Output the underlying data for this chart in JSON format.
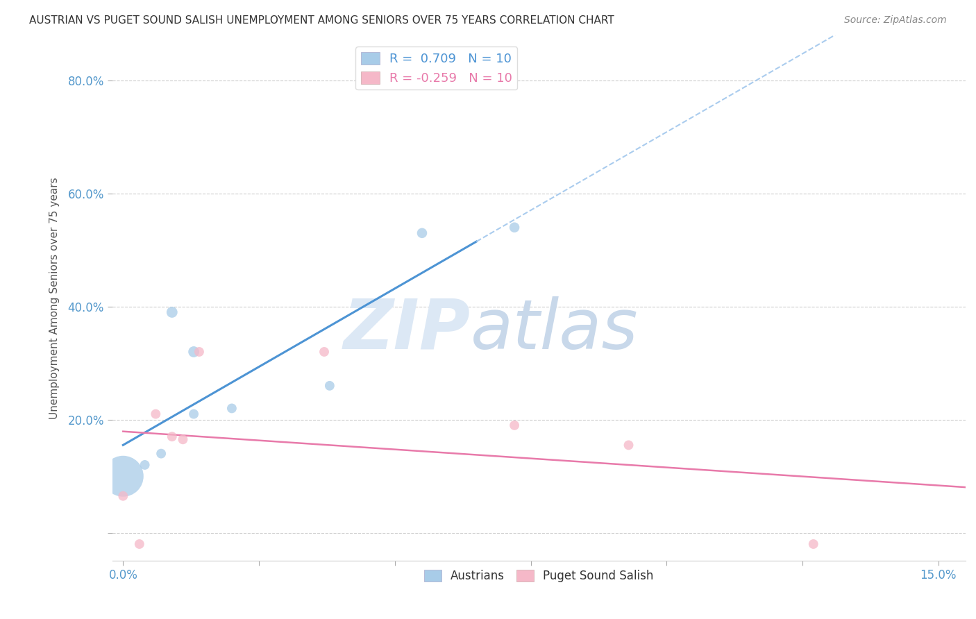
{
  "title": "AUSTRIAN VS PUGET SOUND SALISH UNEMPLOYMENT AMONG SENIORS OVER 75 YEARS CORRELATION CHART",
  "source": "Source: ZipAtlas.com",
  "ylabel": "Unemployment Among Seniors over 75 years",
  "xlabel": "",
  "xlim": [
    -0.002,
    0.155
  ],
  "ylim": [
    -0.05,
    0.88
  ],
  "x_ticks": [
    0.0,
    0.025,
    0.05,
    0.075,
    0.1,
    0.125,
    0.15
  ],
  "x_tick_labels": [
    "0.0%",
    "",
    "",
    "",
    "",
    "",
    "15.0%"
  ],
  "y_ticks": [
    0.0,
    0.2,
    0.4,
    0.6,
    0.8
  ],
  "y_tick_labels": [
    "",
    "20.0%",
    "40.0%",
    "60.0%",
    "80.0%"
  ],
  "austrians_x": [
    0.0,
    0.004,
    0.007,
    0.009,
    0.013,
    0.013,
    0.02,
    0.038,
    0.055,
    0.072
  ],
  "austrians_y": [
    0.1,
    0.12,
    0.14,
    0.39,
    0.32,
    0.21,
    0.22,
    0.26,
    0.53,
    0.54
  ],
  "austrians_size": [
    1800,
    100,
    100,
    130,
    130,
    100,
    100,
    100,
    110,
    110
  ],
  "puget_x": [
    0.0,
    0.003,
    0.006,
    0.009,
    0.011,
    0.014,
    0.037,
    0.072,
    0.093,
    0.127
  ],
  "puget_y": [
    0.065,
    -0.02,
    0.21,
    0.17,
    0.165,
    0.32,
    0.32,
    0.19,
    0.155,
    -0.02
  ],
  "puget_size": [
    100,
    100,
    100,
    100,
    100,
    100,
    100,
    100,
    100,
    100
  ],
  "R_austrians": 0.709,
  "N_austrians": 10,
  "R_puget": -0.259,
  "N_puget": 10,
  "blue_color": "#a8cce8",
  "blue_line_color": "#4d94d4",
  "pink_color": "#f5b8c8",
  "pink_line_color": "#e87aaa",
  "background_color": "#ffffff",
  "grid_color": "#cccccc",
  "watermark_color": "#dce8f5",
  "legend_blue_label": "Austrians",
  "legend_pink_label": "Puget Sound Salish",
  "tick_label_color": "#5599cc"
}
